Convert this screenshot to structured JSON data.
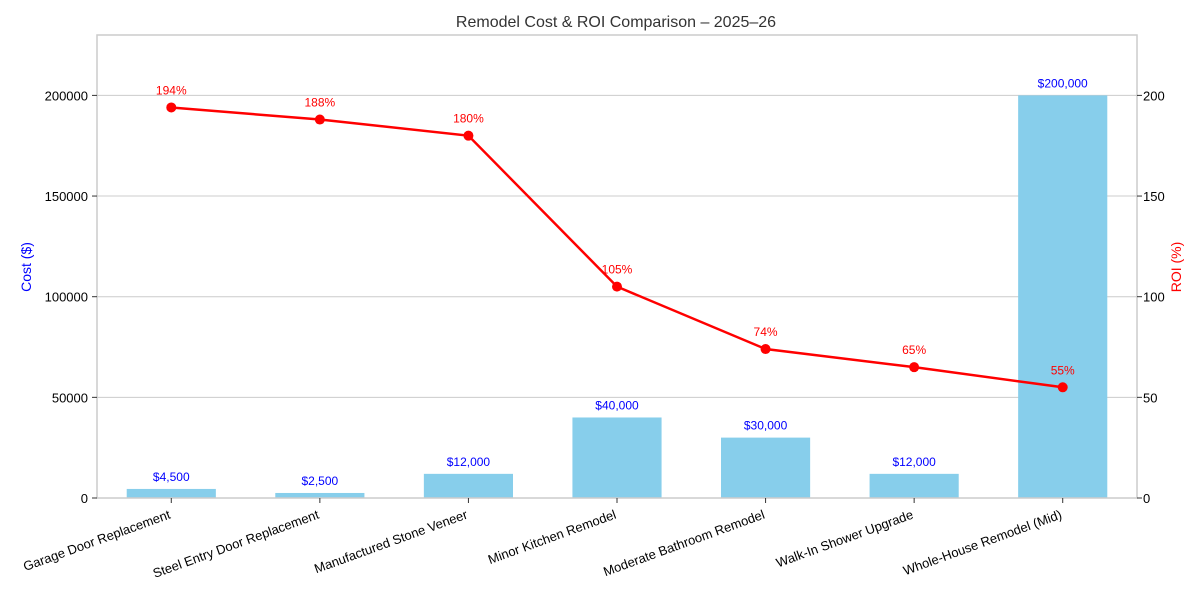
{
  "chart_data": {
    "type": "bar",
    "title": "Remodel Cost & ROI Comparison – 2025–26",
    "categories": [
      "Garage Door Replacement",
      "Steel Entry Door Replacement",
      "Manufactured Stone Veneer",
      "Minor Kitchen Remodel",
      "Moderate Bathroom Remodel",
      "Walk-In Shower Upgrade",
      "Whole-House Remodel (Mid)"
    ],
    "series": [
      {
        "name": "Cost",
        "type": "bar",
        "axis": "left",
        "color": "#87ceeb",
        "label_color": "#0000ff",
        "values": [
          4500,
          2500,
          12000,
          40000,
          30000,
          12000,
          200000
        ],
        "labels": [
          "$4,500",
          "$2,500",
          "$12,000",
          "$40,000",
          "$30,000",
          "$12,000",
          "$200,000"
        ]
      },
      {
        "name": "ROI",
        "type": "line",
        "axis": "right",
        "color": "#ff0000",
        "label_color": "#ff0000",
        "values": [
          194,
          188,
          180,
          105,
          74,
          65,
          55
        ],
        "labels": [
          "194%",
          "188%",
          "180%",
          "105%",
          "74%",
          "65%",
          "55%"
        ]
      }
    ],
    "ylabel": "Cost ($)",
    "y2label": "ROI (%)",
    "ylim": [
      0,
      230000
    ],
    "y2lim": [
      0,
      230
    ],
    "yticks": [
      0,
      50000,
      100000,
      150000,
      200000
    ],
    "y2ticks": [
      0,
      50,
      100,
      150,
      200
    ],
    "ytick_labels": [
      "0",
      "50000",
      "100000",
      "150000",
      "200000"
    ],
    "y2tick_labels": [
      "0",
      "50",
      "100",
      "150",
      "200"
    ],
    "grid": true,
    "colors": {
      "grid": "#cccccc",
      "frame": "#cccccc"
    }
  }
}
